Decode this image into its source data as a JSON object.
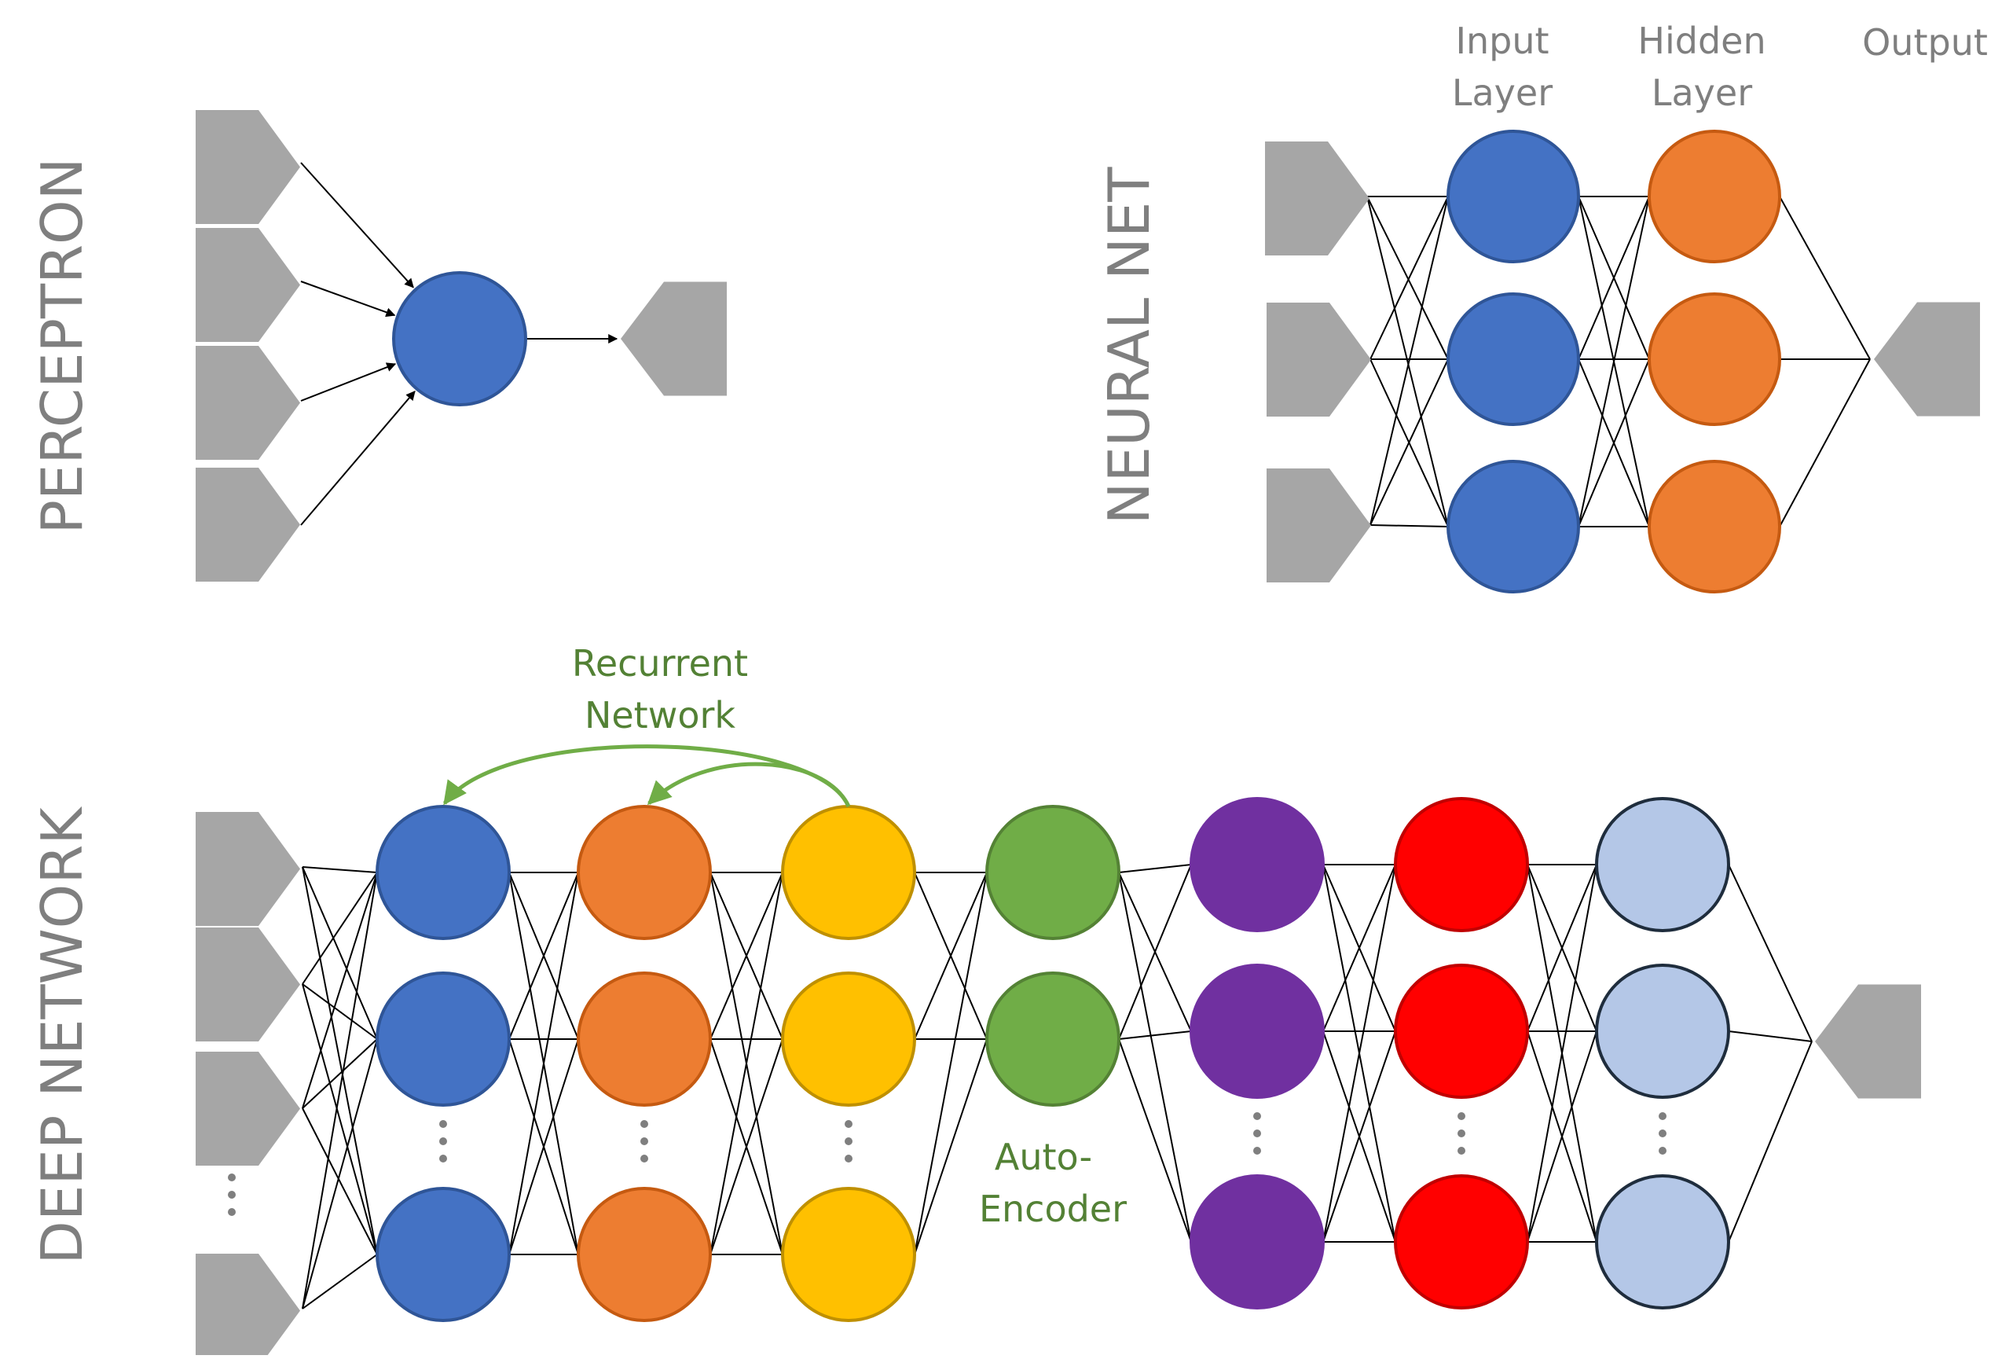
{
  "sections": {
    "perceptron": "PERCEPTRON",
    "neural_net": "NEURAL NET",
    "deep_network": "DEEP NETWORK"
  },
  "neural_net_headers": {
    "input_line1": "Input",
    "input_line2": "Layer",
    "hidden_line1": "Hidden",
    "hidden_line2": "Layer",
    "output": "Output"
  },
  "annotations": {
    "recurrent_line1": "Recurrent",
    "recurrent_line2": "Network",
    "autoencoder_line1": "Auto-",
    "autoencoder_line2": "Encoder"
  },
  "colors": {
    "blue": "#4472c4",
    "orange": "#ed7d31",
    "yellow": "#ffc000",
    "green": "#70ad47",
    "purple": "#7030a0",
    "red": "#ff0000",
    "light_blue": "#b4c7e7",
    "io_gray": "#a6a6a6",
    "label_gray": "#7f7f7f",
    "annotation_green": "#538135",
    "recurrent_arrow": "#70ad47"
  }
}
